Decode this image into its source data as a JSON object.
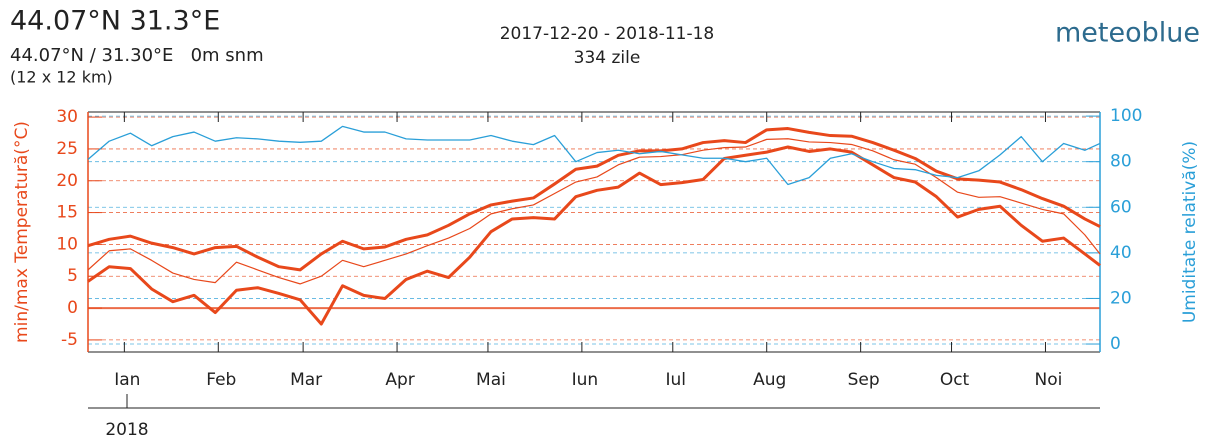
{
  "chart_data": {
    "type": "line",
    "title": "44.07°N 31.3°E",
    "subtitle": "44.07°N / 31.30°E   0m snm",
    "resolution": "(12 x 12 km)",
    "date_range": "2017-12-20 - 2018-11-18",
    "days": "334 zile",
    "brand": "meteoblue",
    "year_label": "2018",
    "ylabel": "min/max Temperatură(°C)",
    "y2label": "Umiditate relativă(%)",
    "x": [
      0,
      7,
      14,
      21,
      28,
      35,
      42,
      49,
      56,
      63,
      70,
      77,
      84,
      91,
      98,
      105,
      112,
      119,
      126,
      133,
      140,
      147,
      154,
      161,
      168,
      175,
      182,
      189,
      196,
      203,
      210,
      217,
      224,
      231,
      238,
      245,
      252,
      259,
      266,
      273,
      280,
      287,
      294,
      301,
      308,
      315,
      322,
      329,
      334
    ],
    "xlim": [
      0,
      334
    ],
    "xticks": [
      {
        "value": 12,
        "label": "Ian"
      },
      {
        "value": 43,
        "label": "Feb"
      },
      {
        "value": 71,
        "label": "Mar"
      },
      {
        "value": 102,
        "label": "Apr"
      },
      {
        "value": 132,
        "label": "Mai"
      },
      {
        "value": 163,
        "label": "Iun"
      },
      {
        "value": 193,
        "label": "Iul"
      },
      {
        "value": 224,
        "label": "Aug"
      },
      {
        "value": 255,
        "label": "Sep"
      },
      {
        "value": 285,
        "label": "Oct"
      },
      {
        "value": 316,
        "label": "Noi"
      }
    ],
    "ylim": [
      -6.9,
      30.8
    ],
    "yticks": [
      -5,
      0,
      5,
      10,
      15,
      20,
      25,
      30
    ],
    "y2lim": [
      -3.5,
      101.8
    ],
    "y2ticks": [
      0,
      20,
      40,
      60,
      80,
      100
    ],
    "grid": true,
    "series": [
      {
        "color": "#e8481b",
        "width": 3,
        "values": [
          9.8,
          10.8,
          11.3,
          10.2,
          9.5,
          8.5,
          9.5,
          9.7,
          8,
          6.5,
          6,
          8.5,
          10.5,
          9.3,
          9.6,
          10.8,
          11.5,
          13,
          14.8,
          16.2,
          16.8,
          17.3,
          19.5,
          21.8,
          22.3,
          24,
          24.7,
          24.7,
          25,
          26,
          26.3,
          26,
          28,
          28.2,
          27.6,
          27.1,
          27,
          26,
          24.8,
          23.5,
          21.5,
          20.3,
          20.1,
          19.8,
          18.6,
          17.2,
          16,
          14,
          12.8
        ]
      },
      {
        "color": "#e8481b",
        "width": 1.2,
        "values": [
          6,
          9,
          9.3,
          7.5,
          5.5,
          4.5,
          4,
          7.2,
          6,
          4.8,
          3.8,
          5,
          7.5,
          6.5,
          7.5,
          8.5,
          9.8,
          11,
          12.5,
          14.8,
          15.6,
          16.2,
          18,
          19.8,
          20.6,
          22.5,
          23.7,
          23.8,
          24.1,
          24.8,
          25.2,
          25.3,
          26.5,
          26.6,
          26.1,
          26,
          25.7,
          24.7,
          23.3,
          22.6,
          20.5,
          18.2,
          17.4,
          17.5,
          16.5,
          15.5,
          14.8,
          11.5,
          8.5
        ]
      },
      {
        "color": "#e8481b",
        "width": 3,
        "values": [
          4.2,
          6.5,
          6.2,
          3,
          1,
          2,
          -0.7,
          2.8,
          3.2,
          2.3,
          1.3,
          -2.5,
          3.5,
          2,
          1.5,
          4.5,
          5.8,
          4.8,
          8,
          12,
          14,
          14.2,
          14,
          17.5,
          18.5,
          19,
          21.2,
          19.4,
          19.7,
          20.2,
          23.5,
          24,
          24.5,
          25.3,
          24.6,
          25,
          24.5,
          22.5,
          20.5,
          19.8,
          17.5,
          14.3,
          15.5,
          16,
          13,
          10.5,
          11,
          8.5,
          6.7
        ]
      },
      {
        "color": "#2a9fd8",
        "width": 1.3,
        "axis": "y2",
        "values": [
          81,
          89,
          92.5,
          87,
          91,
          93,
          89,
          90.5,
          90,
          89,
          88.5,
          89,
          95.5,
          93,
          93,
          90,
          89.5,
          89.5,
          89.5,
          91.5,
          89,
          87.5,
          91.5,
          80,
          84,
          85,
          83.5,
          84.5,
          83,
          81.5,
          81.5,
          80,
          81.5,
          70,
          73,
          81.5,
          83.5,
          80,
          77,
          76.5,
          74,
          73,
          76,
          83,
          91,
          80,
          88,
          85,
          88
        ]
      }
    ]
  }
}
